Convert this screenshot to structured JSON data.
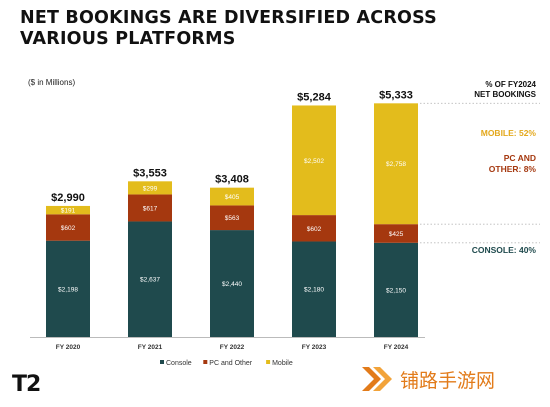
{
  "title": "NET BOOKINGS ARE DIVERSIFIED ACROSS VARIOUS PLATFORMS",
  "units": "($ in Millions)",
  "right_panel": {
    "heading_line1": "% OF FY2024",
    "heading_line2": "NET BOOKINGS",
    "mobile": "MOBILE: 52%",
    "pc_line1": "PC AND",
    "pc_line2": "OTHER: 8%",
    "console": "CONSOLE: 40%"
  },
  "logo": "T2",
  "watermark": "铺路手游网",
  "colors": {
    "console": "#1f4a4d",
    "pc": "#a5380f",
    "mobile": "#e3bc1c",
    "mobile_label": "#e3a81c",
    "pc_label": "#a5380f",
    "console_label": "#1f4a4d"
  },
  "chart_data": {
    "type": "bar",
    "stacked": true,
    "categories": [
      "FY 2020",
      "FY 2021",
      "FY 2022",
      "FY 2023",
      "FY 2024"
    ],
    "series": [
      {
        "name": "Console",
        "values": [
          2198,
          2637,
          2440,
          2180,
          2150
        ],
        "labels": [
          "$2,198",
          "$2,637",
          "$2,440",
          "$2,180",
          "$2,150"
        ]
      },
      {
        "name": "PC and Other",
        "values": [
          602,
          617,
          563,
          602,
          425
        ],
        "labels": [
          "$602",
          "$617",
          "$563",
          "$602",
          "$425"
        ]
      },
      {
        "name": "Mobile",
        "values": [
          191,
          299,
          405,
          2502,
          2758
        ],
        "labels": [
          "$191",
          "$299",
          "$405",
          "$2,502",
          "$2,758"
        ]
      }
    ],
    "totals": [
      "$2,990",
      "$3,553",
      "$3,408",
      "$5,284",
      "$5,333"
    ],
    "ylim": [
      0,
      5500
    ],
    "legend_position": "bottom"
  }
}
